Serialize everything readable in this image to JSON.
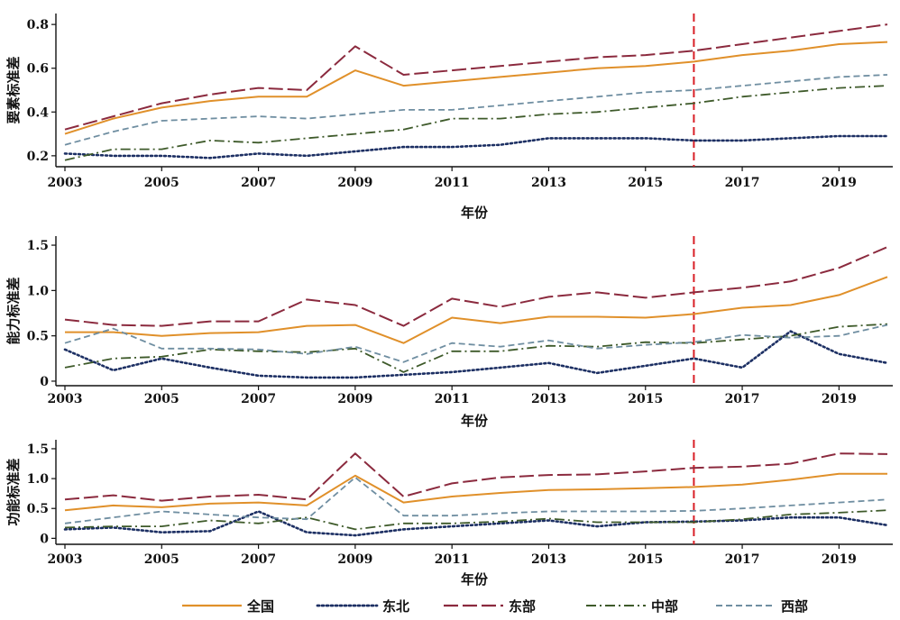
{
  "colors": {
    "全国": "#e0902a",
    "东北": "#1c2f63",
    "东部": "#8b2a3e",
    "中部": "#3e5a2a",
    "西部": "#6f8ea1",
    "reference_line": "#d81f26",
    "axis": "#111111"
  },
  "legend": [
    "全国",
    "东北",
    "东部",
    "中部",
    "西部"
  ],
  "chart_data": [
    {
      "type": "line",
      "ylabel": "要素标准差",
      "xlabel": "年份",
      "xlim": [
        2003,
        2020
      ],
      "ylim": [
        0.15,
        0.85
      ],
      "yticks": [
        0.2,
        0.4,
        0.6,
        0.8
      ],
      "ytick_labels": [
        "0.2",
        "0.4",
        "0.6",
        "0.8"
      ],
      "xticks": [
        2003,
        2005,
        2007,
        2009,
        2011,
        2013,
        2015,
        2017,
        2019
      ],
      "reference_x": 2016,
      "x": [
        2003,
        2004,
        2005,
        2006,
        2007,
        2008,
        2009,
        2010,
        2011,
        2012,
        2013,
        2014,
        2015,
        2016,
        2017,
        2018,
        2019,
        2020
      ],
      "series": [
        {
          "name": "全国",
          "values": [
            0.3,
            0.37,
            0.42,
            0.45,
            0.47,
            0.47,
            0.59,
            0.52,
            0.54,
            0.56,
            0.58,
            0.6,
            0.61,
            0.63,
            0.66,
            0.68,
            0.71,
            0.72
          ]
        },
        {
          "name": "东北",
          "values": [
            0.21,
            0.2,
            0.2,
            0.19,
            0.21,
            0.2,
            0.22,
            0.24,
            0.24,
            0.25,
            0.28,
            0.28,
            0.28,
            0.27,
            0.27,
            0.28,
            0.29,
            0.29
          ]
        },
        {
          "name": "东部",
          "values": [
            0.32,
            0.38,
            0.44,
            0.48,
            0.51,
            0.5,
            0.7,
            0.57,
            0.59,
            0.61,
            0.63,
            0.65,
            0.66,
            0.68,
            0.71,
            0.74,
            0.77,
            0.8
          ]
        },
        {
          "name": "中部",
          "values": [
            0.18,
            0.23,
            0.23,
            0.27,
            0.26,
            0.28,
            0.3,
            0.32,
            0.37,
            0.37,
            0.39,
            0.4,
            0.42,
            0.44,
            0.47,
            0.49,
            0.51,
            0.52
          ]
        },
        {
          "name": "西部",
          "values": [
            0.25,
            0.31,
            0.36,
            0.37,
            0.38,
            0.37,
            0.39,
            0.41,
            0.41,
            0.43,
            0.45,
            0.47,
            0.49,
            0.5,
            0.52,
            0.54,
            0.56,
            0.57
          ]
        }
      ]
    },
    {
      "type": "line",
      "ylabel": "能力标准差",
      "xlabel": "年份",
      "xlim": [
        2003,
        2020
      ],
      "ylim": [
        -0.05,
        1.6
      ],
      "yticks": [
        0,
        0.5,
        1.0,
        1.5
      ],
      "ytick_labels": [
        "0",
        "0.5",
        "1.0",
        "1.5"
      ],
      "xticks": [
        2003,
        2005,
        2007,
        2009,
        2011,
        2013,
        2015,
        2017,
        2019
      ],
      "reference_x": 2016,
      "x": [
        2003,
        2004,
        2005,
        2006,
        2007,
        2008,
        2009,
        2010,
        2011,
        2012,
        2013,
        2014,
        2015,
        2016,
        2017,
        2018,
        2019,
        2020
      ],
      "series": [
        {
          "name": "全国",
          "values": [
            0.54,
            0.54,
            0.5,
            0.53,
            0.54,
            0.61,
            0.62,
            0.42,
            0.7,
            0.64,
            0.71,
            0.71,
            0.7,
            0.74,
            0.81,
            0.84,
            0.95,
            1.15
          ]
        },
        {
          "name": "东北",
          "values": [
            0.35,
            0.12,
            0.25,
            0.15,
            0.06,
            0.04,
            0.04,
            0.07,
            0.1,
            0.15,
            0.2,
            0.09,
            0.17,
            0.25,
            0.15,
            0.55,
            0.3,
            0.2
          ]
        },
        {
          "name": "东部",
          "values": [
            0.68,
            0.62,
            0.61,
            0.66,
            0.66,
            0.9,
            0.84,
            0.61,
            0.91,
            0.82,
            0.93,
            0.98,
            0.92,
            0.98,
            1.03,
            1.1,
            1.25,
            1.48
          ]
        },
        {
          "name": "中部",
          "values": [
            0.15,
            0.25,
            0.27,
            0.35,
            0.33,
            0.32,
            0.36,
            0.1,
            0.33,
            0.33,
            0.39,
            0.38,
            0.43,
            0.42,
            0.46,
            0.5,
            0.6,
            0.63
          ]
        },
        {
          "name": "西部",
          "values": [
            0.42,
            0.58,
            0.36,
            0.36,
            0.35,
            0.3,
            0.38,
            0.21,
            0.42,
            0.38,
            0.45,
            0.36,
            0.4,
            0.43,
            0.51,
            0.48,
            0.5,
            0.62
          ]
        }
      ]
    },
    {
      "type": "line",
      "ylabel": "功能标准差",
      "xlabel": "年份",
      "xlim": [
        2003,
        2020
      ],
      "ylim": [
        -0.1,
        1.65
      ],
      "yticks": [
        0,
        0.5,
        1.0,
        1.5
      ],
      "ytick_labels": [
        "0",
        "0.5",
        "1.0",
        "1.5"
      ],
      "xticks": [
        2003,
        2005,
        2007,
        2009,
        2011,
        2013,
        2015,
        2017,
        2019
      ],
      "reference_x": 2016,
      "x": [
        2003,
        2004,
        2005,
        2006,
        2007,
        2008,
        2009,
        2010,
        2011,
        2012,
        2013,
        2014,
        2015,
        2016,
        2017,
        2018,
        2019,
        2020
      ],
      "series": [
        {
          "name": "全国",
          "values": [
            0.47,
            0.55,
            0.52,
            0.58,
            0.6,
            0.55,
            1.05,
            0.6,
            0.7,
            0.76,
            0.81,
            0.82,
            0.84,
            0.86,
            0.9,
            0.98,
            1.08,
            1.08
          ]
        },
        {
          "name": "东北",
          "values": [
            0.15,
            0.18,
            0.1,
            0.12,
            0.45,
            0.1,
            0.05,
            0.15,
            0.2,
            0.25,
            0.3,
            0.2,
            0.27,
            0.28,
            0.3,
            0.35,
            0.35,
            0.22
          ]
        },
        {
          "name": "东部",
          "values": [
            0.65,
            0.72,
            0.63,
            0.7,
            0.73,
            0.65,
            1.42,
            0.7,
            0.92,
            1.02,
            1.06,
            1.07,
            1.12,
            1.18,
            1.2,
            1.25,
            1.42,
            1.41
          ]
        },
        {
          "name": "中部",
          "values": [
            0.18,
            0.2,
            0.2,
            0.3,
            0.25,
            0.35,
            0.15,
            0.25,
            0.25,
            0.28,
            0.33,
            0.27,
            0.27,
            0.27,
            0.32,
            0.4,
            0.43,
            0.47
          ]
        },
        {
          "name": "西部",
          "values": [
            0.25,
            0.35,
            0.45,
            0.4,
            0.35,
            0.32,
            1.02,
            0.38,
            0.38,
            0.42,
            0.45,
            0.45,
            0.45,
            0.46,
            0.5,
            0.55,
            0.6,
            0.65
          ]
        }
      ]
    }
  ]
}
